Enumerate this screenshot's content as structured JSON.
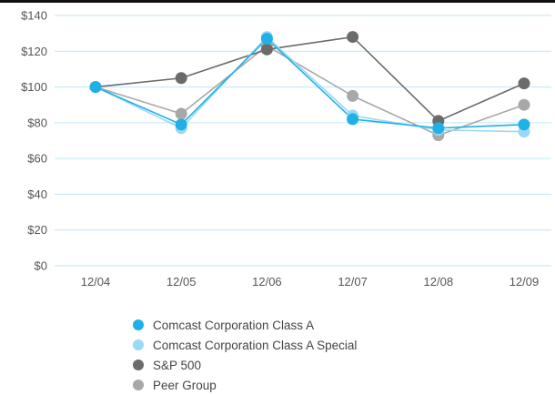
{
  "chart_data": {
    "type": "line",
    "title": "",
    "xlabel": "",
    "ylabel": "",
    "categories": [
      "12/04",
      "12/05",
      "12/06",
      "12/07",
      "12/08",
      "12/09"
    ],
    "ylim": [
      0,
      140
    ],
    "yticks": [
      "$0",
      "$20",
      "$40",
      "$60",
      "$80",
      "$100",
      "$120",
      "$140"
    ],
    "ytick_values": [
      0,
      20,
      40,
      60,
      80,
      100,
      120,
      140
    ],
    "grid": true,
    "legend_position": "bottom-left",
    "series": [
      {
        "name": "Comcast Corporation Class A",
        "values": [
          100,
          79,
          127,
          82,
          77,
          79
        ],
        "color": "#1fb0e8"
      },
      {
        "name": "Comcast Corporation Class A Special",
        "values": [
          100,
          77,
          128,
          84,
          76,
          75
        ],
        "color": "#9ad8f3"
      },
      {
        "name": "S&P 500",
        "values": [
          100,
          105,
          121,
          128,
          81,
          102
        ],
        "color": "#6b6b6b"
      },
      {
        "name": "Peer Group",
        "values": [
          100,
          85,
          123,
          95,
          73,
          90
        ],
        "color": "#a8a8a8"
      }
    ],
    "gridline_color": "#bfe6f6"
  }
}
